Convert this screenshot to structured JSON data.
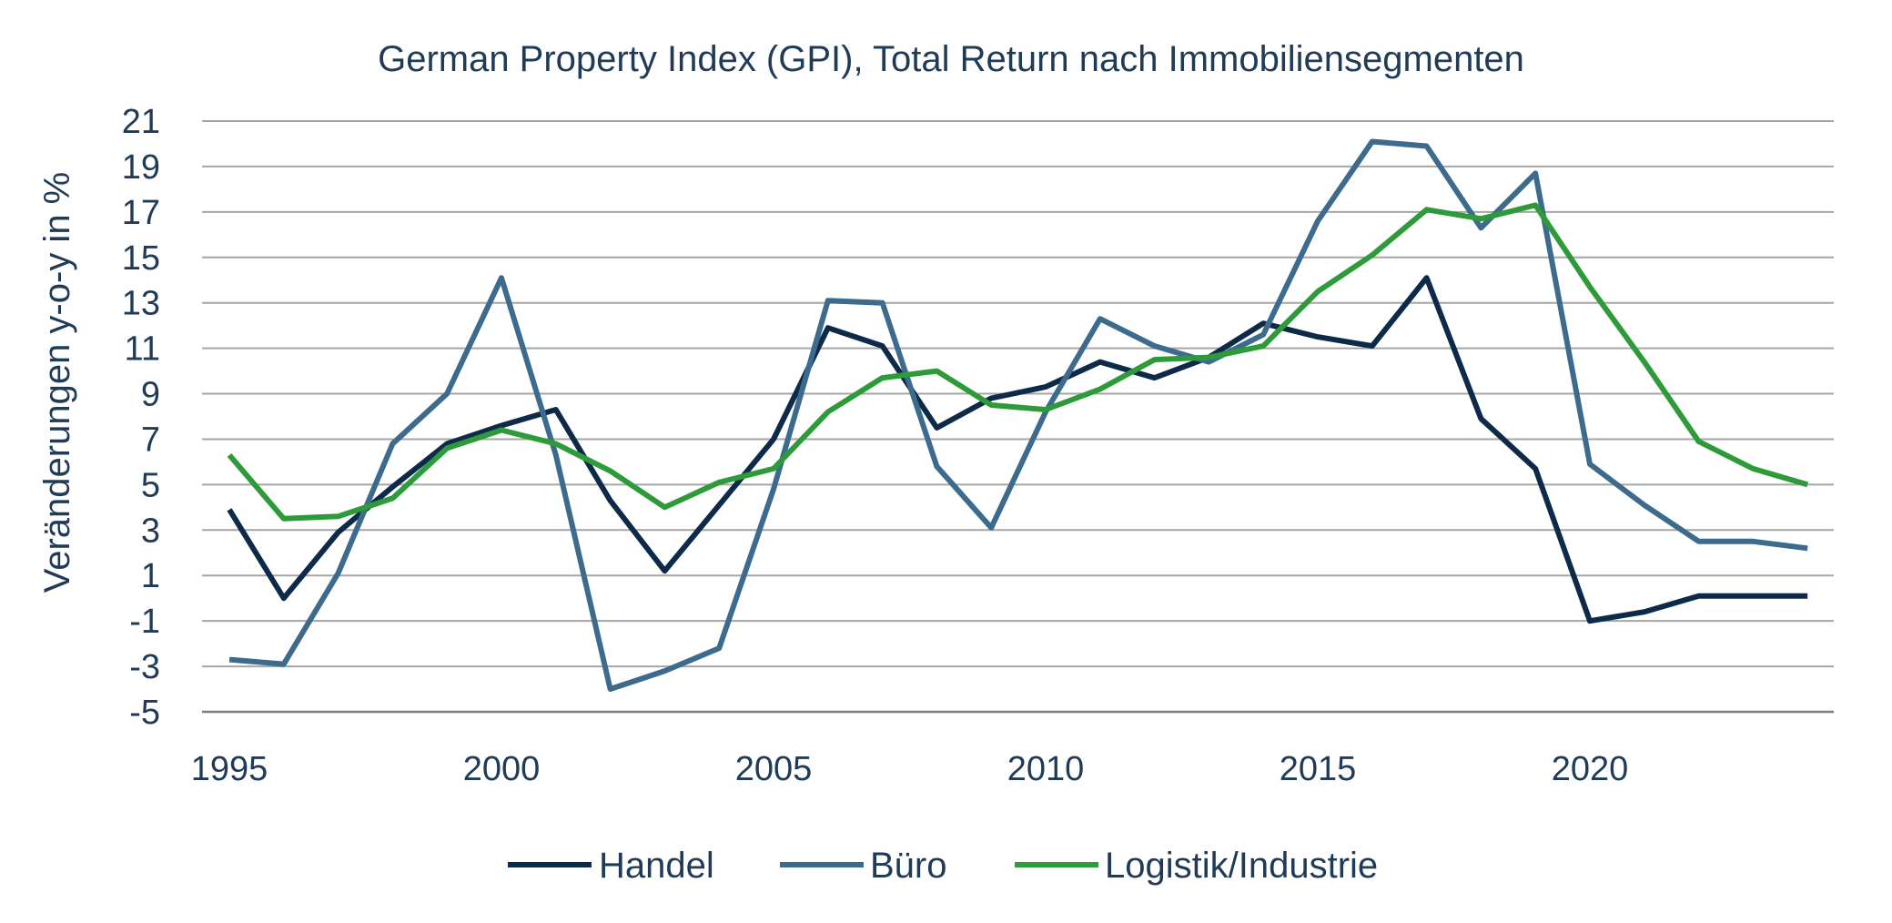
{
  "chart_data": {
    "type": "line",
    "title": "German Property Index (GPI), Total Return nach Immobiliensegmenten",
    "ylabel": "Veränderungen y-o-y in %",
    "xlabel": "",
    "ylim": [
      -5,
      21
    ],
    "yticks": [
      21,
      19,
      17,
      15,
      13,
      11,
      9,
      7,
      5,
      3,
      1,
      -1,
      -3,
      -5
    ],
    "xlim": [
      1995,
      2024
    ],
    "xticks": [
      1995,
      2000,
      2005,
      2010,
      2015,
      2020
    ],
    "grid": true,
    "legend_position": "bottom",
    "x": [
      1995,
      1996,
      1997,
      1998,
      1999,
      2000,
      2001,
      2002,
      2003,
      2004,
      2005,
      2006,
      2007,
      2008,
      2009,
      2010,
      2011,
      2012,
      2013,
      2014,
      2015,
      2016,
      2017,
      2018,
      2019,
      2020,
      2021,
      2022,
      2023,
      2024
    ],
    "series": [
      {
        "name": "Handel",
        "color": "#0d2a48",
        "values": [
          3.9,
          0.0,
          2.9,
          4.9,
          6.8,
          7.6,
          8.3,
          4.3,
          1.2,
          4.1,
          7.0,
          11.9,
          11.1,
          7.5,
          8.8,
          9.3,
          10.4,
          9.7,
          10.6,
          12.1,
          11.5,
          11.1,
          14.1,
          7.9,
          5.7,
          -1.0,
          -0.6,
          0.1,
          0.1,
          0.1
        ]
      },
      {
        "name": "Büro",
        "color": "#3d6b8e",
        "values": [
          -2.7,
          -2.9,
          1.1,
          6.8,
          9.0,
          14.1,
          6.3,
          -4.0,
          -3.2,
          -2.2,
          4.8,
          13.1,
          13.0,
          5.8,
          3.1,
          8.2,
          12.3,
          11.1,
          10.4,
          11.6,
          16.6,
          20.1,
          19.9,
          16.3,
          18.7,
          5.9,
          4.1,
          2.5,
          2.5,
          2.2
        ]
      },
      {
        "name": "Logistik/Industrie",
        "color": "#2e9b3a",
        "values": [
          6.3,
          3.5,
          3.6,
          4.4,
          6.6,
          7.4,
          6.8,
          5.6,
          4.0,
          5.1,
          5.7,
          8.2,
          9.7,
          10.0,
          8.5,
          8.3,
          9.2,
          10.5,
          10.6,
          11.1,
          13.5,
          15.1,
          17.1,
          16.7,
          17.3,
          13.7,
          10.4,
          6.9,
          5.7,
          5.0
        ]
      }
    ]
  }
}
